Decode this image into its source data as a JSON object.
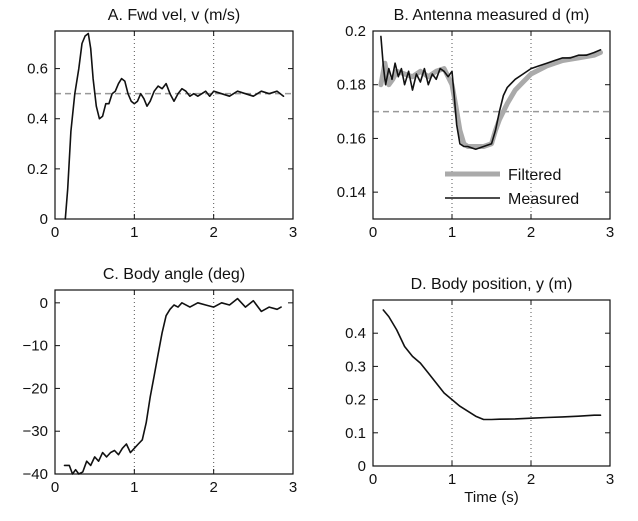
{
  "chart_data": [
    {
      "type": "line",
      "title": "A. Fwd vel, v (m/s)",
      "xlabel": "",
      "ylabel": "",
      "xlim": [
        0,
        3
      ],
      "ylim": [
        0,
        0.75
      ],
      "xticks": [
        0,
        1,
        2,
        3
      ],
      "xtick_labels": [
        "0",
        "1",
        "2",
        "3"
      ],
      "yticks": [
        0,
        0.2,
        0.4,
        0.6
      ],
      "ytick_labels": [
        "0",
        "0.2",
        "0.4",
        "0.6"
      ],
      "vlines": [
        1,
        2
      ],
      "reference_line": 0.5,
      "series": [
        {
          "color": "#111111",
          "x": [
            0.13,
            0.16,
            0.2,
            0.25,
            0.3,
            0.34,
            0.38,
            0.42,
            0.45,
            0.48,
            0.52,
            0.56,
            0.6,
            0.64,
            0.68,
            0.72,
            0.76,
            0.8,
            0.84,
            0.88,
            0.92,
            0.96,
            1.0,
            1.04,
            1.08,
            1.12,
            1.16,
            1.2,
            1.25,
            1.3,
            1.35,
            1.4,
            1.45,
            1.5,
            1.55,
            1.6,
            1.65,
            1.7,
            1.75,
            1.8,
            1.85,
            1.9,
            1.95,
            2.0,
            2.1,
            2.2,
            2.3,
            2.4,
            2.5,
            2.6,
            2.7,
            2.8,
            2.88
          ],
          "y": [
            0.0,
            0.12,
            0.35,
            0.5,
            0.6,
            0.7,
            0.73,
            0.74,
            0.68,
            0.56,
            0.45,
            0.4,
            0.41,
            0.46,
            0.46,
            0.5,
            0.51,
            0.54,
            0.56,
            0.55,
            0.5,
            0.47,
            0.46,
            0.47,
            0.5,
            0.48,
            0.45,
            0.47,
            0.51,
            0.53,
            0.52,
            0.54,
            0.5,
            0.47,
            0.5,
            0.52,
            0.51,
            0.49,
            0.5,
            0.49,
            0.5,
            0.51,
            0.49,
            0.51,
            0.5,
            0.49,
            0.51,
            0.5,
            0.49,
            0.51,
            0.5,
            0.51,
            0.49
          ]
        }
      ]
    },
    {
      "type": "line",
      "title": "B. Antenna measured d (m)",
      "xlabel": "",
      "ylabel": "",
      "xlim": [
        0,
        3
      ],
      "ylim": [
        0.13,
        0.2
      ],
      "xticks": [
        0,
        1,
        2,
        3
      ],
      "xtick_labels": [
        "0",
        "1",
        "2",
        "3"
      ],
      "yticks": [
        0.14,
        0.16,
        0.18,
        0.2
      ],
      "ytick_labels": [
        "0.14",
        "0.16",
        "0.18",
        "0.2"
      ],
      "vlines": [
        1,
        2
      ],
      "reference_line": 0.17,
      "legend_position": "lower-right",
      "series": [
        {
          "name": "Filtered",
          "color": "#aaaaaa",
          "x": [
            0.1,
            0.15,
            0.2,
            0.25,
            0.3,
            0.4,
            0.5,
            0.6,
            0.7,
            0.8,
            0.9,
            1.0,
            1.05,
            1.1,
            1.15,
            1.2,
            1.3,
            1.4,
            1.5,
            1.55,
            1.6,
            1.7,
            1.8,
            1.9,
            2.0,
            2.2,
            2.4,
            2.6,
            2.8,
            2.88
          ],
          "y": [
            0.18,
            0.188,
            0.18,
            0.182,
            0.185,
            0.184,
            0.183,
            0.185,
            0.183,
            0.185,
            0.186,
            0.18,
            0.172,
            0.163,
            0.158,
            0.157,
            0.157,
            0.157,
            0.158,
            0.163,
            0.167,
            0.173,
            0.178,
            0.181,
            0.184,
            0.187,
            0.189,
            0.19,
            0.191,
            0.192
          ]
        },
        {
          "name": "Measured",
          "color": "#111111",
          "x": [
            0.1,
            0.13,
            0.16,
            0.2,
            0.24,
            0.28,
            0.32,
            0.36,
            0.4,
            0.45,
            0.5,
            0.55,
            0.6,
            0.65,
            0.7,
            0.75,
            0.8,
            0.85,
            0.9,
            0.95,
            1.0,
            1.03,
            1.06,
            1.1,
            1.15,
            1.2,
            1.3,
            1.4,
            1.5,
            1.55,
            1.6,
            1.65,
            1.7,
            1.8,
            1.9,
            2.0,
            2.1,
            2.2,
            2.3,
            2.4,
            2.5,
            2.6,
            2.7,
            2.8,
            2.88
          ],
          "y": [
            0.198,
            0.187,
            0.18,
            0.186,
            0.182,
            0.188,
            0.183,
            0.186,
            0.18,
            0.185,
            0.178,
            0.184,
            0.181,
            0.186,
            0.18,
            0.184,
            0.182,
            0.186,
            0.185,
            0.183,
            0.185,
            0.175,
            0.165,
            0.158,
            0.157,
            0.157,
            0.156,
            0.157,
            0.158,
            0.163,
            0.17,
            0.176,
            0.179,
            0.182,
            0.184,
            0.186,
            0.187,
            0.188,
            0.189,
            0.19,
            0.19,
            0.191,
            0.191,
            0.192,
            0.193
          ]
        }
      ]
    },
    {
      "type": "line",
      "title": "C. Body angle (deg)",
      "xlabel": "",
      "ylabel": "",
      "xlim": [
        0,
        3
      ],
      "ylim": [
        -40,
        3
      ],
      "xticks": [
        0,
        1,
        2,
        3
      ],
      "xtick_labels": [
        "0",
        "1",
        "2",
        "3"
      ],
      "yticks": [
        -40,
        -30,
        -20,
        -10,
        0
      ],
      "ytick_labels": [
        "−40",
        "−30",
        "−20",
        "−10",
        "0"
      ],
      "vlines": [
        1,
        2
      ],
      "series": [
        {
          "color": "#111111",
          "x": [
            0.12,
            0.18,
            0.22,
            0.26,
            0.3,
            0.35,
            0.4,
            0.45,
            0.5,
            0.55,
            0.6,
            0.65,
            0.7,
            0.75,
            0.8,
            0.85,
            0.9,
            0.95,
            1.0,
            1.05,
            1.1,
            1.15,
            1.2,
            1.25,
            1.3,
            1.35,
            1.4,
            1.45,
            1.5,
            1.55,
            1.6,
            1.7,
            1.8,
            1.9,
            2.0,
            2.1,
            2.2,
            2.3,
            2.4,
            2.5,
            2.6,
            2.7,
            2.8,
            2.85
          ],
          "y": [
            -38,
            -38,
            -40,
            -39,
            -40,
            -39.5,
            -37,
            -38,
            -36,
            -37,
            -35,
            -36,
            -35,
            -34.5,
            -35.5,
            -34,
            -33,
            -35,
            -34,
            -33,
            -32,
            -28,
            -22,
            -17,
            -12,
            -7,
            -3,
            -1.5,
            -0.5,
            -1,
            0,
            -1,
            0,
            -0.5,
            -1,
            0,
            -0.5,
            1,
            -1,
            0.5,
            -2,
            -1,
            -1.5,
            -1
          ]
        }
      ]
    },
    {
      "type": "line",
      "title": "D. Body position, y (m)",
      "xlabel": "Time (s)",
      "ylabel": "",
      "xlim": [
        0,
        3
      ],
      "ylim": [
        0,
        0.5
      ],
      "xticks": [
        0,
        1,
        2,
        3
      ],
      "xtick_labels": [
        "0",
        "1",
        "2",
        "3"
      ],
      "yticks": [
        0,
        0.1,
        0.2,
        0.3,
        0.4
      ],
      "ytick_labels": [
        "0",
        "0.1",
        "0.2",
        "0.3",
        "0.4"
      ],
      "vlines": [
        1,
        2
      ],
      "series": [
        {
          "color": "#111111",
          "x": [
            0.13,
            0.2,
            0.3,
            0.4,
            0.5,
            0.6,
            0.7,
            0.8,
            0.9,
            1.0,
            1.1,
            1.2,
            1.3,
            1.4,
            1.5,
            1.6,
            1.8,
            2.0,
            2.2,
            2.4,
            2.6,
            2.8,
            2.88
          ],
          "y": [
            0.47,
            0.45,
            0.41,
            0.36,
            0.33,
            0.31,
            0.28,
            0.25,
            0.22,
            0.2,
            0.18,
            0.165,
            0.15,
            0.14,
            0.14,
            0.141,
            0.142,
            0.144,
            0.146,
            0.148,
            0.15,
            0.153,
            0.153
          ]
        }
      ]
    }
  ]
}
